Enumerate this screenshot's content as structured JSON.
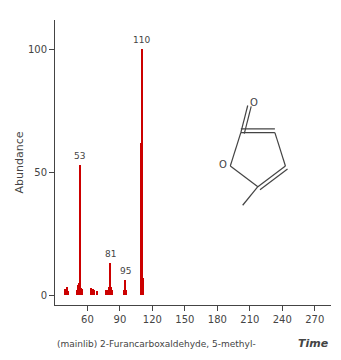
{
  "chart_data": {
    "type": "bar",
    "xlabel": "(mainlib) 2-Furancarboxaldehyde, 5-methyl-",
    "ylabel": "Abundance",
    "x": [
      39,
      41,
      42,
      50,
      51,
      52,
      53,
      54,
      55,
      63,
      65,
      66,
      69,
      77,
      79,
      80,
      81,
      82,
      83,
      94,
      95,
      96,
      109,
      110,
      111
    ],
    "values": [
      2.5,
      3.5,
      1.5,
      2.0,
      4.0,
      5.0,
      53.0,
      3.0,
      2.5,
      3.0,
      2.5,
      2.0,
      1.5,
      2.0,
      2.0,
      3.5,
      13.0,
      3.5,
      2.0,
      2.0,
      6.0,
      2.0,
      62.0,
      100.0,
      7.0
    ],
    "color": "#cc0000",
    "xlim": [
      30,
      285
    ],
    "ylim": [
      -4,
      112
    ],
    "xticks": [
      60,
      90,
      120,
      150,
      180,
      210,
      240,
      270
    ],
    "yticks": [
      0,
      50,
      100
    ],
    "grid": false,
    "annotations": [
      {
        "x": 53,
        "y": 53.0,
        "text": "53"
      },
      {
        "x": 81,
        "y": 13.0,
        "text": "81"
      },
      {
        "x": 95,
        "y": 6.0,
        "text": "95"
      },
      {
        "x": 110,
        "y": 100.0,
        "text": "110"
      },
      {
        "text": "O"
      },
      {
        "text": "O"
      },
      {
        "text": "Time"
      }
    ]
  }
}
